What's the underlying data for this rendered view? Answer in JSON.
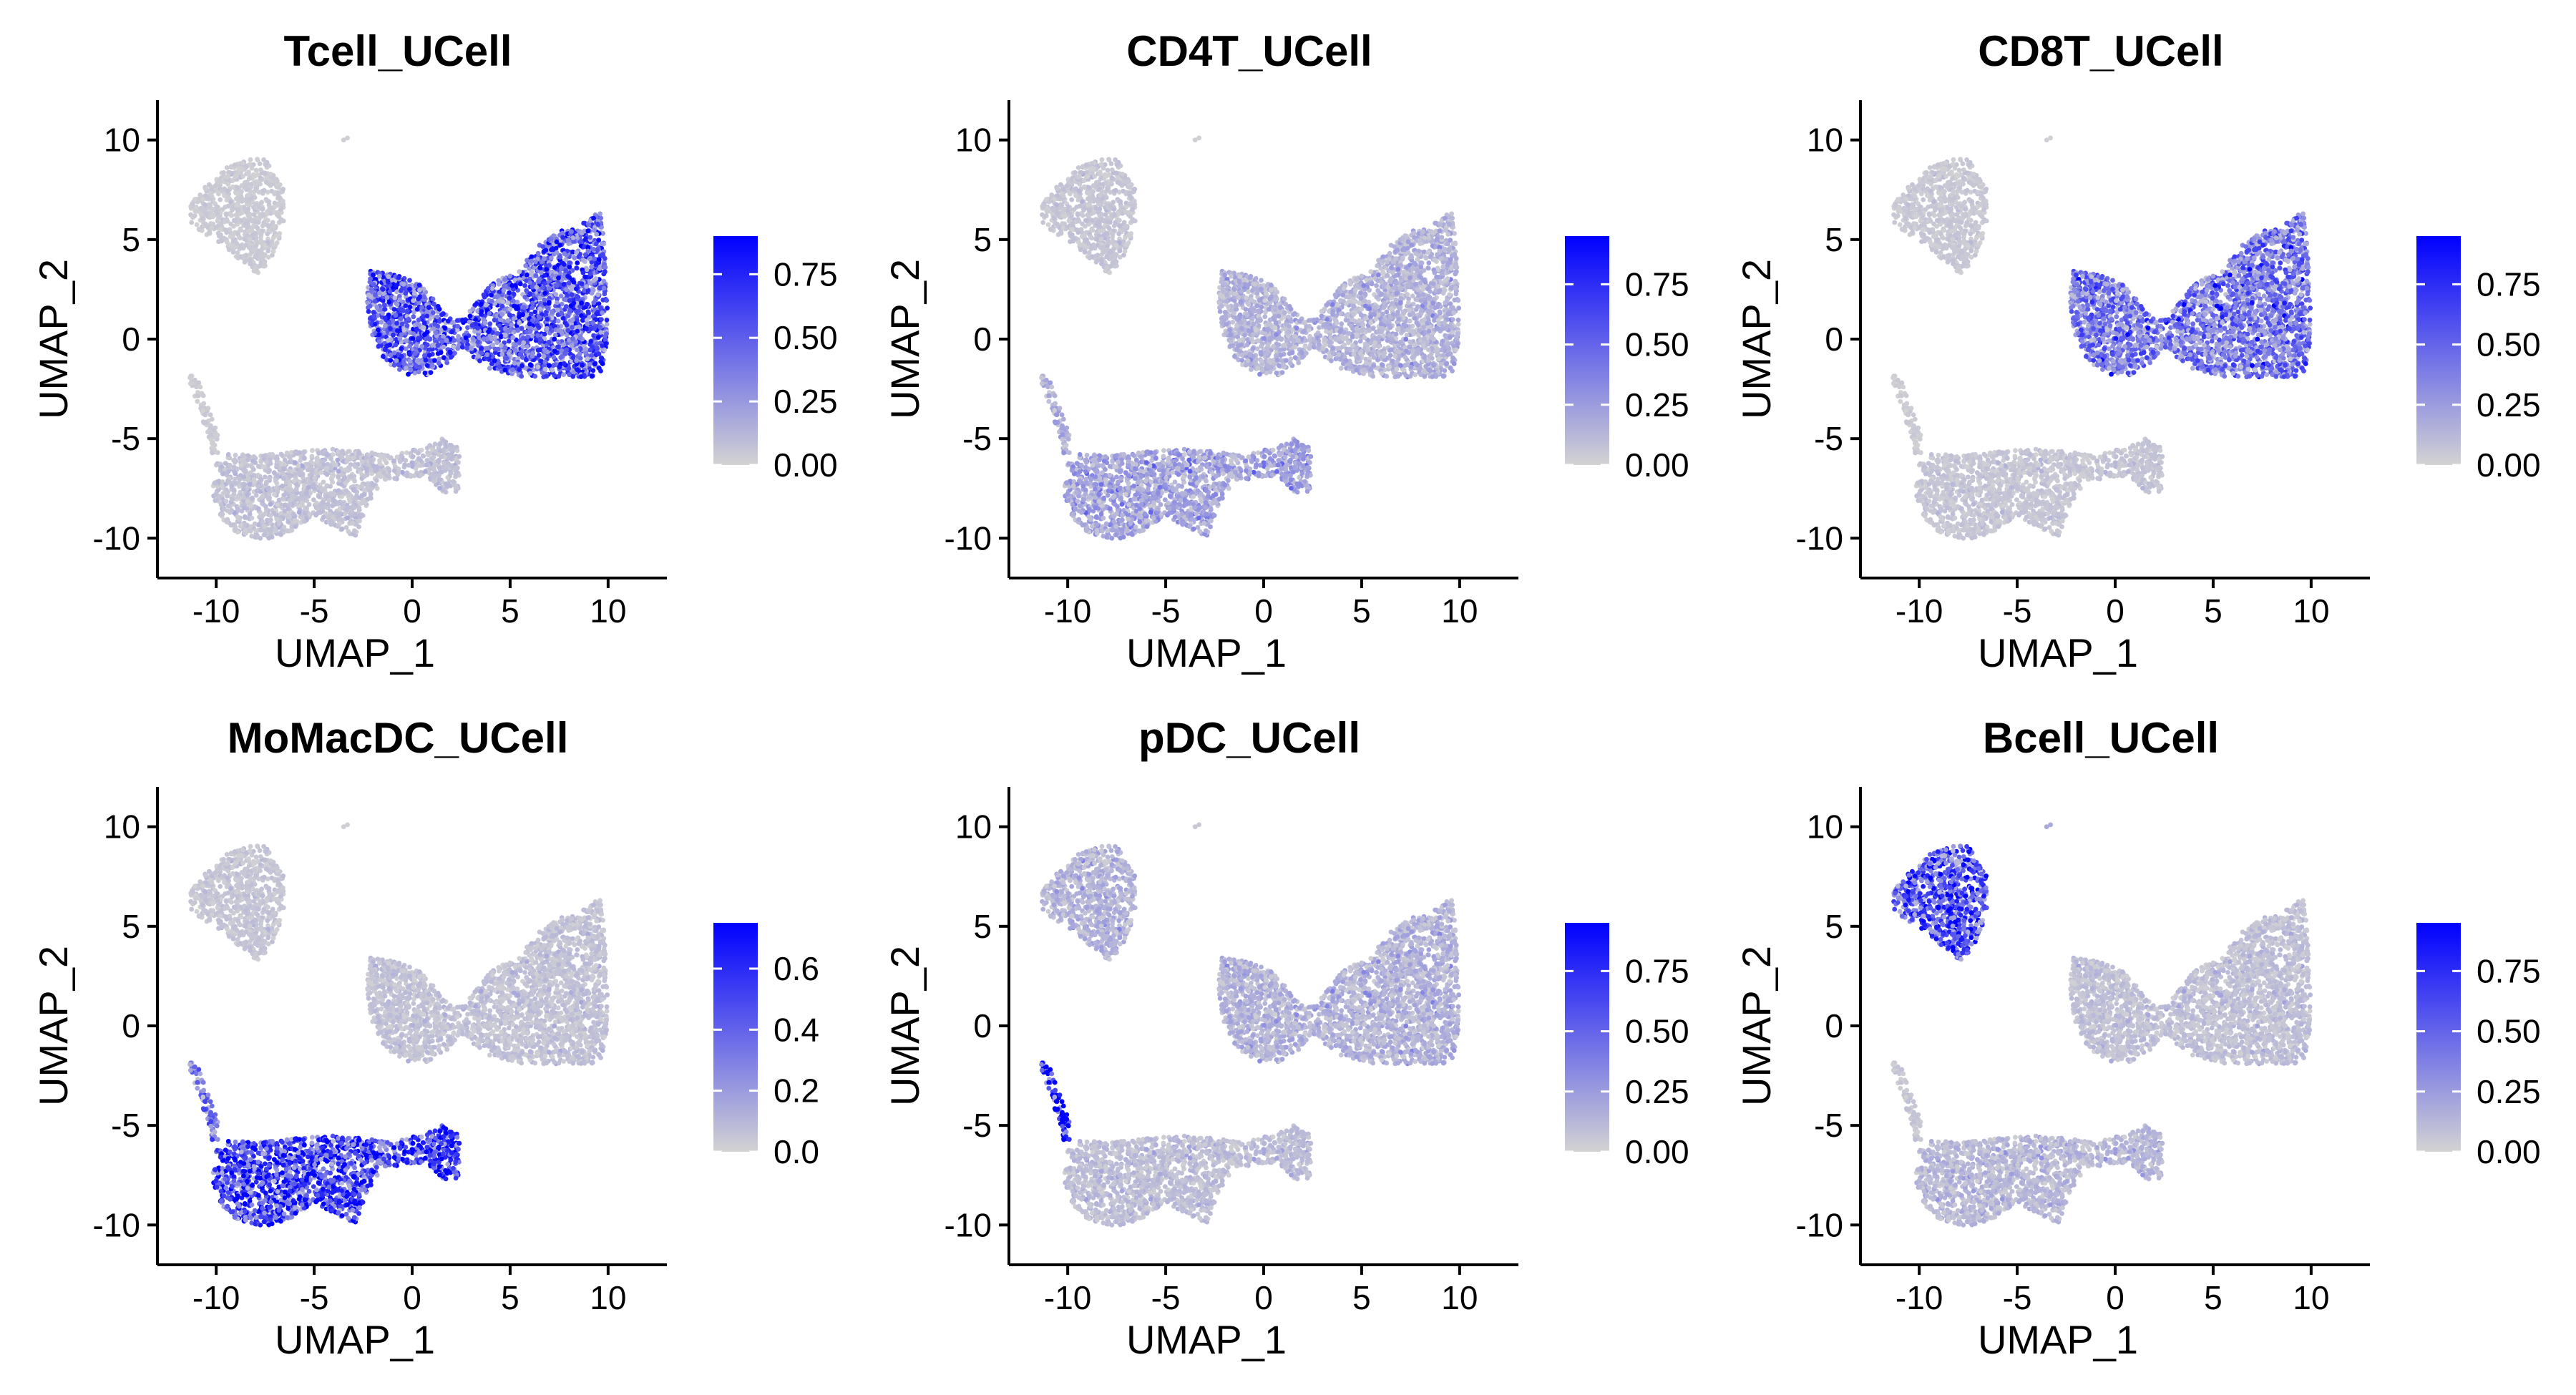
{
  "figure": {
    "colors": {
      "low": "#d3d3d3",
      "high": "#0000ff",
      "axis": "#000000",
      "background": "#ffffff"
    }
  },
  "chart_data": [
    {
      "type": "scatter",
      "title": "Tcell_UCell",
      "xlabel": "UMAP_1",
      "ylabel": "UMAP_2",
      "xlim": [
        -13,
        13
      ],
      "ylim": [
        -12,
        12
      ],
      "xticks": [
        -10,
        -5,
        0,
        5,
        10
      ],
      "xtick_labels": [
        "-10",
        "-5",
        "0",
        "5",
        "10"
      ],
      "yticks": [
        -10,
        -5,
        0,
        5,
        10
      ],
      "ytick_labels": [
        "-10",
        "-5",
        "0",
        "5",
        "10"
      ],
      "color_scale": {
        "min": 0,
        "max": 0.9,
        "ticks": [
          0,
          0.25,
          0.5,
          0.75
        ],
        "tick_labels": [
          "0.00",
          "0.25",
          "0.50",
          "0.75"
        ],
        "low_color": "#d3d3d3",
        "high_color": "#0000ff"
      },
      "cluster_scores": {
        "bcell_cluster": 0.03,
        "tcell_cluster": 0.45,
        "myeloid_cluster": 0.06,
        "pdc_streak": 0.03
      }
    },
    {
      "type": "scatter",
      "title": "CD4T_UCell",
      "xlabel": "UMAP_1",
      "ylabel": "UMAP_2",
      "xlim": [
        -13,
        13
      ],
      "ylim": [
        -12,
        12
      ],
      "xticks": [
        -10,
        -5,
        0,
        5,
        10
      ],
      "xtick_labels": [
        "-10",
        "-5",
        "0",
        "5",
        "10"
      ],
      "yticks": [
        -10,
        -5,
        0,
        5,
        10
      ],
      "ytick_labels": [
        "-10",
        "-5",
        "0",
        "5",
        "10"
      ],
      "color_scale": {
        "min": 0,
        "max": 0.95,
        "ticks": [
          0,
          0.25,
          0.5,
          0.75
        ],
        "tick_labels": [
          "0.00",
          "0.25",
          "0.50",
          "0.75"
        ],
        "low_color": "#d3d3d3",
        "high_color": "#0000ff"
      },
      "cluster_scores": {
        "bcell_cluster": 0.05,
        "tcell_cluster": 0.12,
        "myeloid_cluster": 0.18,
        "pdc_streak": 0.15
      }
    },
    {
      "type": "scatter",
      "title": "CD8T_UCell",
      "xlabel": "UMAP_1",
      "ylabel": "UMAP_2",
      "xlim": [
        -13,
        13
      ],
      "ylim": [
        -12,
        12
      ],
      "xticks": [
        -10,
        -5,
        0,
        5,
        10
      ],
      "xtick_labels": [
        "-10",
        "-5",
        "0",
        "5",
        "10"
      ],
      "yticks": [
        -10,
        -5,
        0,
        5,
        10
      ],
      "ytick_labels": [
        "-10",
        "-5",
        "0",
        "5",
        "10"
      ],
      "color_scale": {
        "min": 0,
        "max": 0.95,
        "ticks": [
          0,
          0.25,
          0.5,
          0.75
        ],
        "tick_labels": [
          "0.00",
          "0.25",
          "0.50",
          "0.75"
        ],
        "low_color": "#d3d3d3",
        "high_color": "#0000ff"
      },
      "cluster_scores": {
        "bcell_cluster": 0.04,
        "tcell_cluster": 0.35,
        "myeloid_cluster": 0.05,
        "pdc_streak": 0.03
      }
    },
    {
      "type": "scatter",
      "title": "MoMacDC_UCell",
      "xlabel": "UMAP_1",
      "ylabel": "UMAP_2",
      "xlim": [
        -13,
        13
      ],
      "ylim": [
        -12,
        12
      ],
      "xticks": [
        -10,
        -5,
        0,
        5,
        10
      ],
      "xtick_labels": [
        "-10",
        "-5",
        "0",
        "5",
        "10"
      ],
      "yticks": [
        -10,
        -5,
        0,
        5,
        10
      ],
      "ytick_labels": [
        "-10",
        "-5",
        "0",
        "5",
        "10"
      ],
      "color_scale": {
        "min": 0,
        "max": 0.75,
        "ticks": [
          0,
          0.2,
          0.4,
          0.6
        ],
        "tick_labels": [
          "0.0",
          "0.2",
          "0.4",
          "0.6"
        ],
        "low_color": "#d3d3d3",
        "high_color": "#0000ff"
      },
      "cluster_scores": {
        "bcell_cluster": 0.04,
        "tcell_cluster": 0.05,
        "myeloid_cluster": 0.45,
        "pdc_streak": 0.3
      }
    },
    {
      "type": "scatter",
      "title": "pDC_UCell",
      "xlabel": "UMAP_1",
      "ylabel": "UMAP_2",
      "xlim": [
        -13,
        13
      ],
      "ylim": [
        -12,
        12
      ],
      "xticks": [
        -10,
        -5,
        0,
        5,
        10
      ],
      "xtick_labels": [
        "-10",
        "-5",
        "0",
        "5",
        "10"
      ],
      "yticks": [
        -10,
        -5,
        0,
        5,
        10
      ],
      "ytick_labels": [
        "-10",
        "-5",
        "0",
        "5",
        "10"
      ],
      "color_scale": {
        "min": 0,
        "max": 0.95,
        "ticks": [
          0,
          0.25,
          0.5,
          0.75
        ],
        "tick_labels": [
          "0.00",
          "0.25",
          "0.50",
          "0.75"
        ],
        "low_color": "#d3d3d3",
        "high_color": "#0000ff"
      },
      "cluster_scores": {
        "bcell_cluster": 0.12,
        "tcell_cluster": 0.12,
        "myeloid_cluster": 0.08,
        "pdc_streak": 0.9
      }
    },
    {
      "type": "scatter",
      "title": "Bcell_UCell",
      "xlabel": "UMAP_1",
      "ylabel": "UMAP_2",
      "xlim": [
        -13,
        13
      ],
      "ylim": [
        -12,
        12
      ],
      "xticks": [
        -10,
        -5,
        0,
        5,
        10
      ],
      "xtick_labels": [
        "-10",
        "-5",
        "0",
        "5",
        "10"
      ],
      "yticks": [
        -10,
        -5,
        0,
        5,
        10
      ],
      "ytick_labels": [
        "-10",
        "-5",
        "0",
        "5",
        "10"
      ],
      "color_scale": {
        "min": 0,
        "max": 0.95,
        "ticks": [
          0,
          0.25,
          0.5,
          0.75
        ],
        "tick_labels": [
          "0.00",
          "0.25",
          "0.50",
          "0.75"
        ],
        "low_color": "#d3d3d3",
        "high_color": "#0000ff"
      },
      "cluster_scores": {
        "bcell_cluster": 0.5,
        "tcell_cluster": 0.07,
        "myeloid_cluster": 0.1,
        "pdc_streak": 0.05
      }
    }
  ]
}
